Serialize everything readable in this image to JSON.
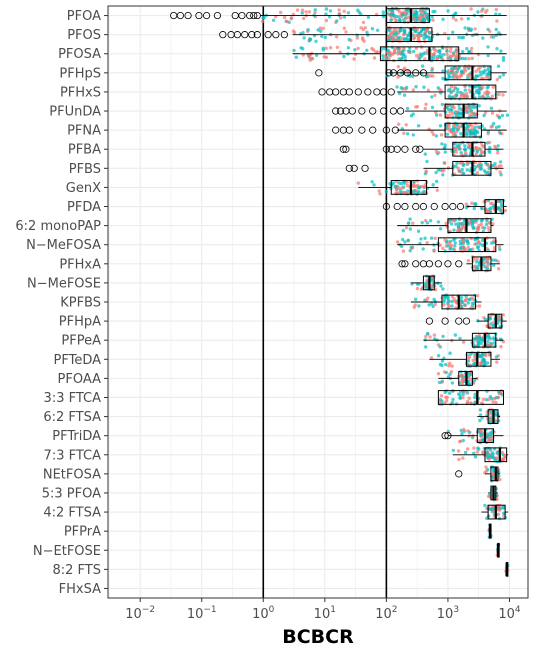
{
  "chart_data": {
    "type": "boxplot",
    "title": "",
    "xlabel": "BCBCR",
    "ylabel": "",
    "x_scale": "log10",
    "xlim": [
      0.003,
      20000
    ],
    "x_ticks": [
      {
        "value": 0.01,
        "base": "10",
        "exp": "−2"
      },
      {
        "value": 0.1,
        "base": "10",
        "exp": "−1"
      },
      {
        "value": 1,
        "base": "10",
        "exp": "0"
      },
      {
        "value": 10,
        "base": "10",
        "exp": "1"
      },
      {
        "value": 100,
        "base": "10",
        "exp": "2"
      },
      {
        "value": 1000,
        "base": "10",
        "exp": "3"
      },
      {
        "value": 10000,
        "base": "10",
        "exp": "4"
      }
    ],
    "reference_lines": [
      1,
      100
    ],
    "grid": true,
    "legend": "none",
    "colors": {
      "point_a": "#f8766d",
      "point_b": "#00bfc4",
      "box": "#000000",
      "grid": "#ebebeb",
      "panel_border": "#333333"
    },
    "categories": [
      "PFOA",
      "PFOS",
      "PFOSA",
      "PFHpS",
      "PFHxS",
      "PFUnDA",
      "PFNA",
      "PFBA",
      "PFBS",
      "GenX",
      "PFDA",
      "6:2 monoPAP",
      "N−MeFOSA",
      "PFHxA",
      "N−MeFOSE",
      "KPFBS",
      "PFHpA",
      "PFPeA",
      "PFTeDA",
      "PFOAA",
      "3:3 FTCA",
      "6:2 FTSA",
      "PFTriDA",
      "7:3 FTCA",
      "NEtFOSA",
      "5:3 PFOA",
      "4:2 FTSA",
      "PFPrA",
      "N−EtFOSE",
      "8:2 FTS",
      "FHxSA"
    ],
    "boxes": [
      {
        "name": "PFOA",
        "whisker_low": 0.9,
        "q1": 100,
        "median": 250,
        "q3": 500,
        "whisker_high": 9000,
        "outliers": [
          0.035,
          0.045,
          0.06,
          0.09,
          0.12,
          0.18,
          0.35,
          0.45,
          0.6,
          0.7,
          0.8
        ]
      },
      {
        "name": "PFOS",
        "whisker_low": 3,
        "q1": 100,
        "median": 250,
        "q3": 550,
        "whisker_high": 9000,
        "outliers": [
          0.22,
          0.3,
          0.38,
          0.5,
          0.65,
          0.8,
          1.2,
          1.6,
          2.2
        ]
      },
      {
        "name": "PFOSA",
        "whisker_low": 3,
        "q1": 80,
        "median": 500,
        "q3": 1500,
        "whisker_high": 9000,
        "outliers": []
      },
      {
        "name": "PFHpS",
        "whisker_low": 100,
        "q1": 900,
        "median": 2500,
        "q3": 5000,
        "whisker_high": 9000,
        "outliers": [
          8,
          110,
          130,
          170,
          220,
          300,
          400
        ]
      },
      {
        "name": "PFHxS",
        "whisker_low": 150,
        "q1": 900,
        "median": 2500,
        "q3": 6000,
        "whisker_high": 9000,
        "outliers": [
          9,
          12,
          15,
          20,
          25,
          35,
          50,
          70,
          90,
          120
        ]
      },
      {
        "name": "PFUnDA",
        "whisker_low": 200,
        "q1": 900,
        "median": 1800,
        "q3": 3000,
        "whisker_high": 9000,
        "outliers": [
          15,
          18,
          22,
          28,
          40,
          60,
          90,
          130,
          170
        ]
      },
      {
        "name": "PFNA",
        "whisker_low": 150,
        "q1": 900,
        "median": 1800,
        "q3": 3500,
        "whisker_high": 9000,
        "outliers": [
          15,
          20,
          25,
          40,
          60,
          100,
          140
        ]
      },
      {
        "name": "PFBA",
        "whisker_low": 400,
        "q1": 1200,
        "median": 2500,
        "q3": 4000,
        "whisker_high": 8000,
        "outliers": [
          20,
          22,
          100,
          120,
          150,
          200,
          300,
          350
        ]
      },
      {
        "name": "PFBS",
        "whisker_low": 400,
        "q1": 1200,
        "median": 2500,
        "q3": 5000,
        "whisker_high": 8000,
        "outliers": [
          25,
          30,
          45
        ]
      },
      {
        "name": "GenX",
        "whisker_low": 35,
        "q1": 120,
        "median": 250,
        "q3": 450,
        "whisker_high": 700,
        "outliers": []
      },
      {
        "name": "PFDA",
        "whisker_low": 2000,
        "q1": 4000,
        "median": 6000,
        "q3": 8000,
        "whisker_high": 9000,
        "outliers": [
          100,
          150,
          200,
          300,
          400,
          600,
          900,
          1200,
          1600
        ]
      },
      {
        "name": "6:2 monoPAP",
        "whisker_low": 150,
        "q1": 1000,
        "median": 2000,
        "q3": 5000,
        "whisker_high": 5500,
        "outliers": []
      },
      {
        "name": "N−MeFOSA",
        "whisker_low": 150,
        "q1": 700,
        "median": 4000,
        "q3": 6000,
        "whisker_high": 8000,
        "outliers": []
      },
      {
        "name": "PFHxA",
        "whisker_low": 2000,
        "q1": 2500,
        "median": 3500,
        "q3": 5000,
        "whisker_high": 7000,
        "outliers": [
          180,
          200,
          300,
          400,
          500,
          700,
          1000,
          1500
        ]
      },
      {
        "name": "N−MeFOSE",
        "whisker_low": 250,
        "q1": 400,
        "median": 500,
        "q3": 600,
        "whisker_high": 800,
        "outliers": []
      },
      {
        "name": "KPFBS",
        "whisker_low": 250,
        "q1": 800,
        "median": 1500,
        "q3": 2800,
        "whisker_high": 3500,
        "outliers": []
      },
      {
        "name": "PFHpA",
        "whisker_low": 3000,
        "q1": 4500,
        "median": 6000,
        "q3": 7500,
        "whisker_high": 9000,
        "outliers": [
          500,
          900,
          1500,
          2000
        ]
      },
      {
        "name": "PFPeA",
        "whisker_low": 400,
        "q1": 2500,
        "median": 4000,
        "q3": 6000,
        "whisker_high": 8000,
        "outliers": []
      },
      {
        "name": "PFTeDA",
        "whisker_low": 500,
        "q1": 2000,
        "median": 3000,
        "q3": 5000,
        "whisker_high": 7000,
        "outliers": []
      },
      {
        "name": "PFOAA",
        "whisker_low": 700,
        "q1": 1500,
        "median": 2000,
        "q3": 2500,
        "whisker_high": 3000,
        "outliers": []
      },
      {
        "name": "3:3 FTCA",
        "whisker_low": 700,
        "q1": 700,
        "median": 3000,
        "q3": 8000,
        "whisker_high": 8000,
        "outliers": []
      },
      {
        "name": "6:2 FTSA",
        "whisker_low": 3000,
        "q1": 4500,
        "median": 5500,
        "q3": 6500,
        "whisker_high": 7000,
        "outliers": []
      },
      {
        "name": "PFTriDA",
        "whisker_low": 1000,
        "q1": 3000,
        "median": 4000,
        "q3": 5500,
        "whisker_high": 8000,
        "outliers": [
          900,
          1000
        ]
      },
      {
        "name": "7:3 FTCA",
        "whisker_low": 1200,
        "q1": 4000,
        "median": 7000,
        "q3": 9000,
        "whisker_high": 9500,
        "outliers": []
      },
      {
        "name": "NEtFOSA",
        "whisker_low": 4000,
        "q1": 5000,
        "median": 6000,
        "q3": 6500,
        "whisker_high": 7000,
        "outliers": [
          1500
        ]
      },
      {
        "name": "5:3 PFOA",
        "whisker_low": 4500,
        "q1": 5000,
        "median": 5500,
        "q3": 6000,
        "whisker_high": 6500,
        "outliers": []
      },
      {
        "name": "4:2 FTSA",
        "whisker_low": 3500,
        "q1": 4500,
        "median": 6000,
        "q3": 8500,
        "whisker_high": 9500,
        "outliers": []
      },
      {
        "name": "PFPrA",
        "whisker_low": 4800,
        "q1": 4800,
        "median": 4800,
        "q3": 4800,
        "whisker_high": 4800,
        "outliers": []
      },
      {
        "name": "N−EtFOSE",
        "whisker_low": 6500,
        "q1": 6500,
        "median": 6500,
        "q3": 6500,
        "whisker_high": 6500,
        "outliers": []
      },
      {
        "name": "8:2 FTS",
        "whisker_low": 9000,
        "q1": 9000,
        "median": 9000,
        "q3": 9000,
        "whisker_high": 9000,
        "outliers": []
      },
      {
        "name": "FHxSA",
        "outliers": []
      }
    ]
  }
}
